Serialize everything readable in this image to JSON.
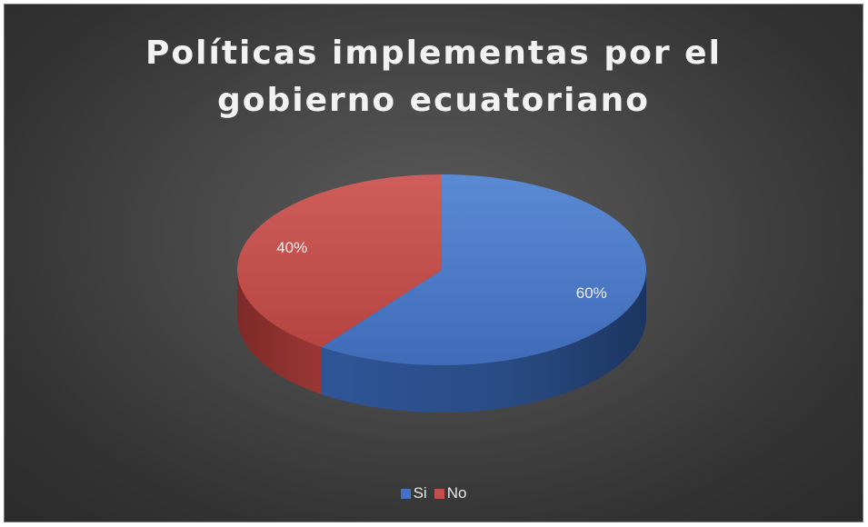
{
  "chart_data": {
    "type": "pie",
    "title_lines": [
      "Políticas implementas por el",
      "gobierno ecuatoriano"
    ],
    "categories": [
      "Si",
      "No"
    ],
    "values": [
      60,
      40
    ],
    "data_labels": [
      "60%",
      "40%"
    ],
    "colors": [
      "#4472c4",
      "#c0504d"
    ],
    "legend_position": "bottom",
    "style": "3d"
  },
  "legend": {
    "items": [
      {
        "label": "Si",
        "color": "#4472c4"
      },
      {
        "label": "No",
        "color": "#c0504d"
      }
    ]
  }
}
